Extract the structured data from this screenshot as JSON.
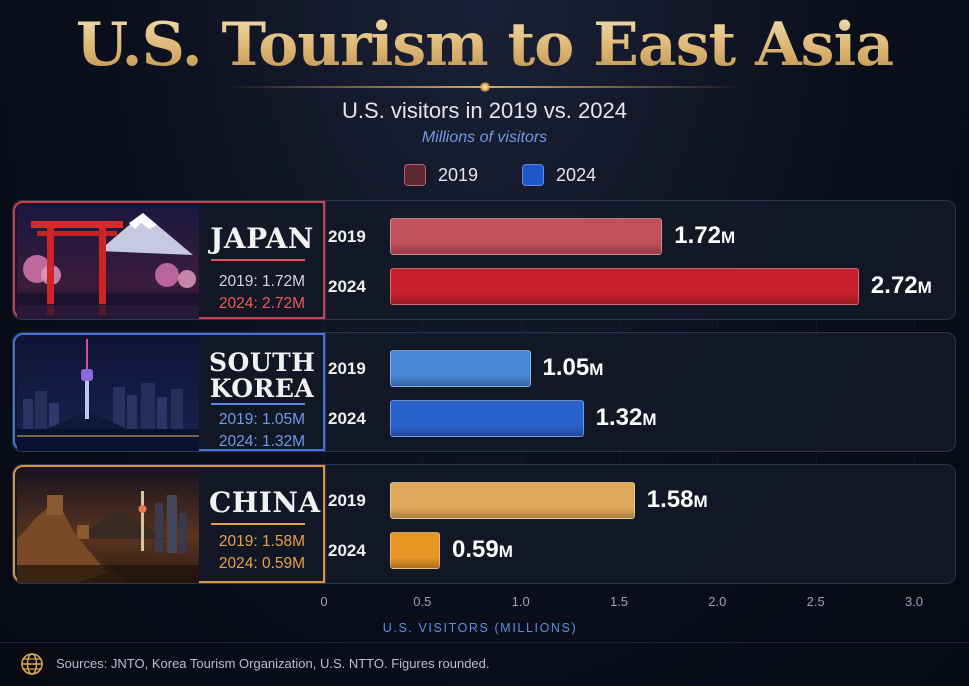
{
  "title": "U.S. Tourism to East Asia",
  "subtitle": "U.S. visitors in 2019 vs. 2024",
  "unit_note": "Millions of visitors",
  "legend": [
    {
      "label": "2019"
    },
    {
      "label": "2024"
    }
  ],
  "chart_data": {
    "type": "bar",
    "orientation": "horizontal",
    "categories": [
      "JAPAN",
      "SOUTH KOREA",
      "CHINA"
    ],
    "series": [
      {
        "name": "2019",
        "values": [
          1.72,
          1.05,
          1.58
        ]
      },
      {
        "name": "2024",
        "values": [
          2.72,
          1.32,
          0.59
        ]
      }
    ],
    "xlabel": "U.S. VISITORS (MILLIONS)",
    "xlim": [
      0,
      3.0
    ],
    "x_ticks": [
      "0",
      "0.5",
      "1.0",
      "1.5",
      "2.0",
      "2.5",
      "3.0"
    ],
    "value_labels": [
      {
        "v2019": "1.72",
        "v2024": "2.72"
      },
      {
        "v2019": "1.05",
        "v2024": "1.32"
      },
      {
        "v2019": "1.58",
        "v2024": "0.59"
      }
    ],
    "value_suffix": "M"
  },
  "countries": [
    {
      "name_line1": "JAPAN",
      "name_line2": "",
      "stat_2019": "2019: 1.72M",
      "stat_2024": "2024: 2.72M",
      "bar_colors": {
        "c2019": "#c0505c",
        "c2024": "#c8202e"
      },
      "accent": "#e0505a"
    },
    {
      "name_line1": "SOUTH",
      "name_line2": "KOREA",
      "stat_2019": "2019: 1.05M",
      "stat_2024": "2024: 1.32M",
      "bar_colors": {
        "c2019": "#4a86d8",
        "c2024": "#2a62cc"
      },
      "accent": "#5a8ae8"
    },
    {
      "name_line1": "CHINA",
      "name_line2": "",
      "stat_2019": "2019: 1.58M",
      "stat_2024": "2024: 0.59M",
      "bar_colors": {
        "c2019": "#e0a85a",
        "c2024": "#e69624"
      },
      "accent": "#e5a24a"
    }
  ],
  "row_year_labels": [
    "2019",
    "2024"
  ],
  "source": "Sources: JNTO, Korea Tourism Organization, U.S. NTTO. Figures rounded."
}
